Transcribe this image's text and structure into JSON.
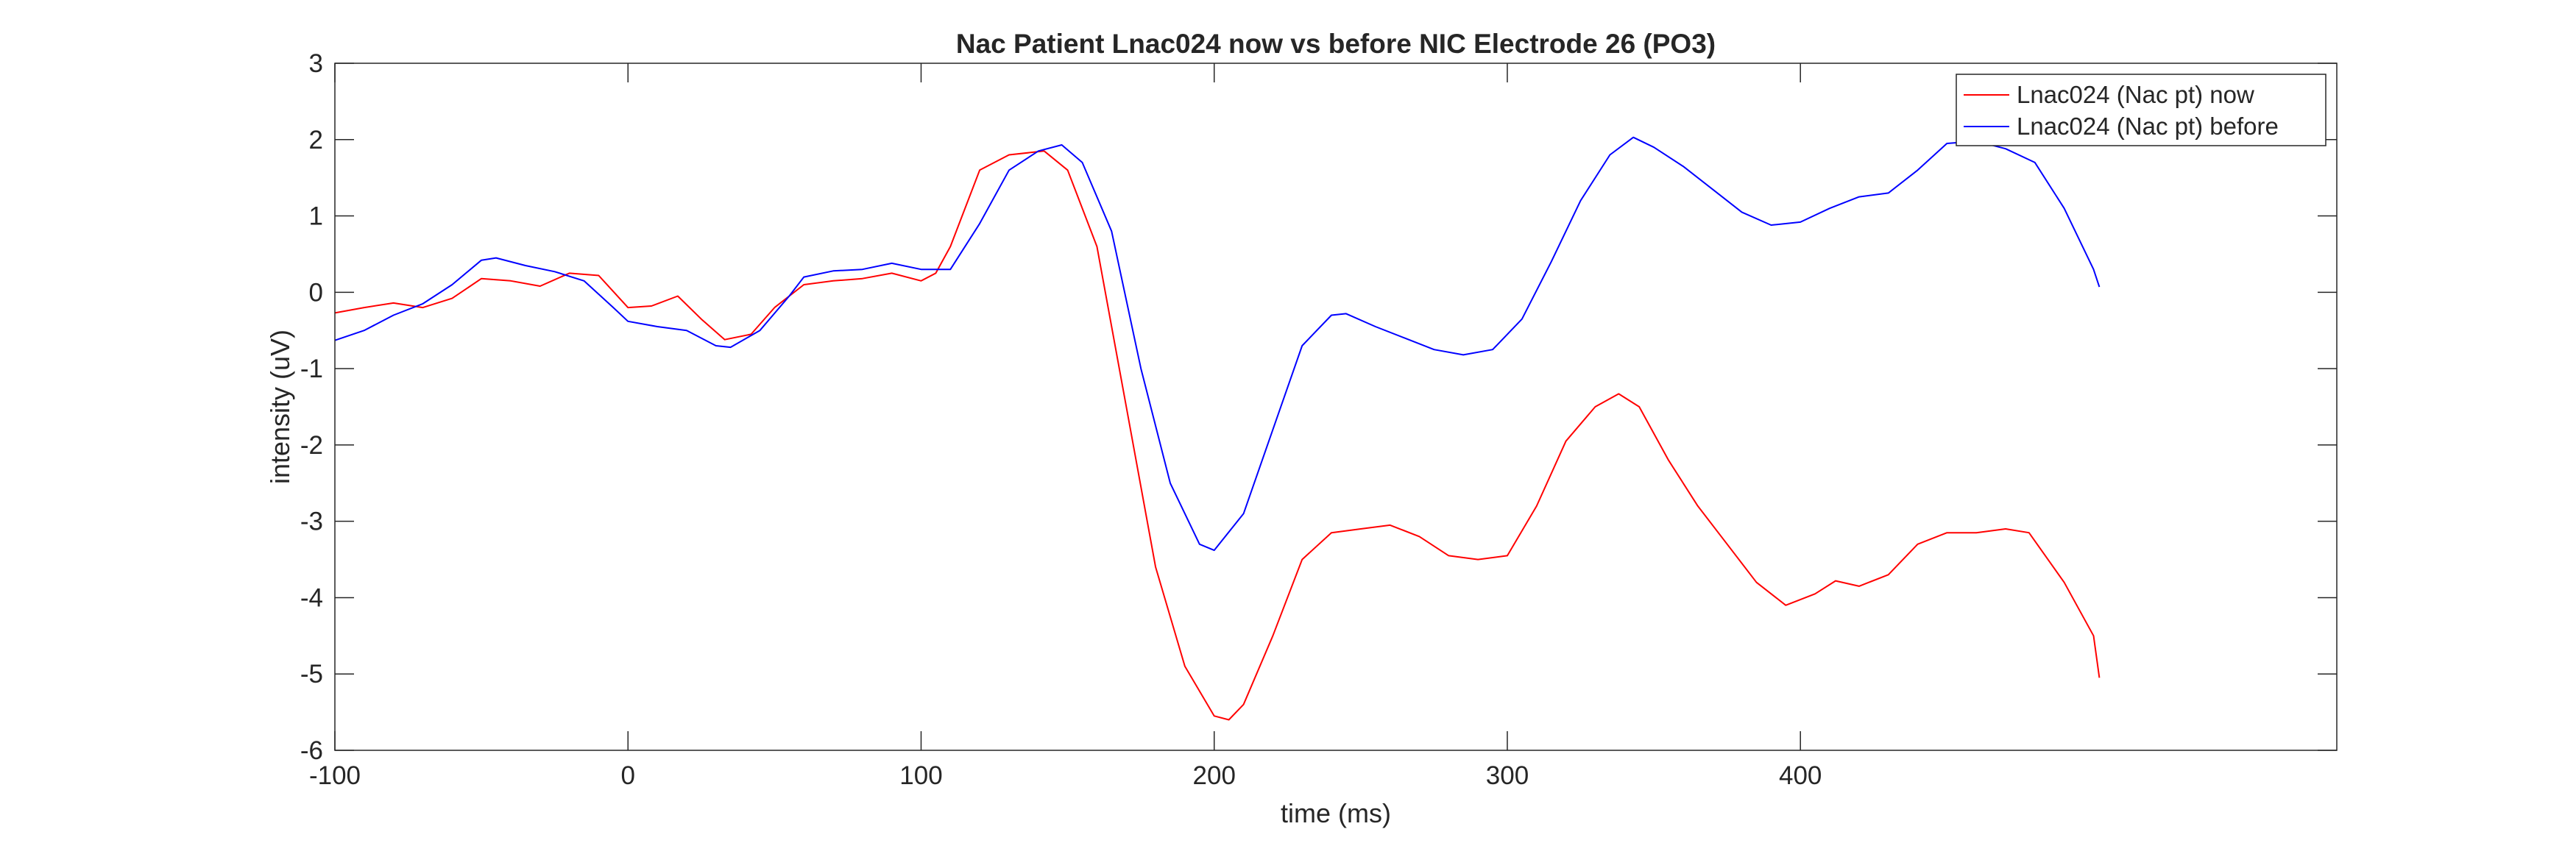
{
  "chart_data": {
    "type": "line",
    "title": "Nac Patient Lnac024 now vs before NIC Electrode 26 (PO3)",
    "xlabel": "time (ms)",
    "ylabel": "intensity (uV)",
    "xlim": [
      -100,
      583
    ],
    "ylim": [
      -6,
      3
    ],
    "xticks": [
      -100,
      0,
      100,
      200,
      300,
      400
    ],
    "xtick_labels": [
      "-100",
      "0",
      "100",
      "200",
      "300",
      "400"
    ],
    "yticks": [
      3,
      2,
      1,
      0,
      -1,
      -2,
      -3,
      -4,
      -5,
      -6
    ],
    "ytick_labels": [
      "3",
      "2",
      "1",
      "0",
      "-1",
      "-2",
      "-3",
      "-4",
      "-5",
      "-6"
    ],
    "grid": false,
    "legend_position": "top-right",
    "series": [
      {
        "name": "Lnac024 (Nac pt) now",
        "color": "#ff0000",
        "points": [
          [
            -100,
            -0.27
          ],
          [
            -90,
            -0.2
          ],
          [
            -80,
            -0.14
          ],
          [
            -70,
            -0.2
          ],
          [
            -60,
            -0.08
          ],
          [
            -50,
            0.18
          ],
          [
            -40,
            0.15
          ],
          [
            -30,
            0.08
          ],
          [
            -20,
            0.25
          ],
          [
            -10,
            0.22
          ],
          [
            0,
            -0.2
          ],
          [
            8,
            -0.18
          ],
          [
            17,
            -0.05
          ],
          [
            25,
            -0.35
          ],
          [
            33,
            -0.62
          ],
          [
            42,
            -0.55
          ],
          [
            50,
            -0.2
          ],
          [
            60,
            0.1
          ],
          [
            70,
            0.15
          ],
          [
            80,
            0.18
          ],
          [
            90,
            0.25
          ],
          [
            100,
            0.15
          ],
          [
            105,
            0.25
          ],
          [
            110,
            0.6
          ],
          [
            120,
            1.6
          ],
          [
            130,
            1.8
          ],
          [
            142,
            1.85
          ],
          [
            150,
            1.6
          ],
          [
            160,
            0.6
          ],
          [
            170,
            -1.5
          ],
          [
            180,
            -3.6
          ],
          [
            190,
            -4.9
          ],
          [
            200,
            -5.55
          ],
          [
            205,
            -5.6
          ],
          [
            210,
            -5.4
          ],
          [
            220,
            -4.5
          ],
          [
            230,
            -3.5
          ],
          [
            240,
            -3.15
          ],
          [
            250,
            -3.1
          ],
          [
            260,
            -3.05
          ],
          [
            270,
            -3.2
          ],
          [
            280,
            -3.45
          ],
          [
            290,
            -3.5
          ],
          [
            300,
            -3.45
          ],
          [
            310,
            -2.8
          ],
          [
            320,
            -1.95
          ],
          [
            330,
            -1.5
          ],
          [
            338,
            -1.33
          ],
          [
            345,
            -1.5
          ],
          [
            355,
            -2.2
          ],
          [
            365,
            -2.8
          ],
          [
            375,
            -3.3
          ],
          [
            385,
            -3.8
          ],
          [
            395,
            -4.1
          ],
          [
            405,
            -3.95
          ],
          [
            412,
            -3.78
          ],
          [
            420,
            -3.85
          ],
          [
            430,
            -3.7
          ],
          [
            440,
            -3.3
          ],
          [
            450,
            -3.15
          ],
          [
            460,
            -3.15
          ],
          [
            470,
            -3.1
          ],
          [
            478,
            -3.15
          ],
          [
            490,
            -3.8
          ],
          [
            500,
            -4.5
          ],
          [
            502,
            -5.05
          ]
        ]
      },
      {
        "name": "Lnac024 (Nac pt) before",
        "color": "#0000ff",
        "points": [
          [
            -100,
            -0.63
          ],
          [
            -90,
            -0.5
          ],
          [
            -80,
            -0.3
          ],
          [
            -70,
            -0.15
          ],
          [
            -60,
            0.1
          ],
          [
            -50,
            0.42
          ],
          [
            -45,
            0.45
          ],
          [
            -35,
            0.35
          ],
          [
            -25,
            0.27
          ],
          [
            -15,
            0.15
          ],
          [
            -5,
            -0.2
          ],
          [
            0,
            -0.38
          ],
          [
            10,
            -0.45
          ],
          [
            20,
            -0.5
          ],
          [
            30,
            -0.7
          ],
          [
            35,
            -0.72
          ],
          [
            45,
            -0.5
          ],
          [
            55,
            -0.05
          ],
          [
            60,
            0.2
          ],
          [
            70,
            0.28
          ],
          [
            80,
            0.3
          ],
          [
            90,
            0.38
          ],
          [
            100,
            0.3
          ],
          [
            110,
            0.3
          ],
          [
            120,
            0.9
          ],
          [
            130,
            1.6
          ],
          [
            140,
            1.85
          ],
          [
            148,
            1.93
          ],
          [
            155,
            1.7
          ],
          [
            165,
            0.8
          ],
          [
            175,
            -1.0
          ],
          [
            185,
            -2.5
          ],
          [
            195,
            -3.3
          ],
          [
            200,
            -3.38
          ],
          [
            210,
            -2.9
          ],
          [
            220,
            -1.8
          ],
          [
            230,
            -0.7
          ],
          [
            240,
            -0.3
          ],
          [
            245,
            -0.28
          ],
          [
            255,
            -0.45
          ],
          [
            265,
            -0.6
          ],
          [
            275,
            -0.75
          ],
          [
            285,
            -0.82
          ],
          [
            295,
            -0.75
          ],
          [
            305,
            -0.35
          ],
          [
            315,
            0.4
          ],
          [
            325,
            1.2
          ],
          [
            335,
            1.8
          ],
          [
            343,
            2.03
          ],
          [
            350,
            1.9
          ],
          [
            360,
            1.65
          ],
          [
            370,
            1.35
          ],
          [
            380,
            1.05
          ],
          [
            390,
            0.88
          ],
          [
            400,
            0.92
          ],
          [
            410,
            1.1
          ],
          [
            420,
            1.25
          ],
          [
            430,
            1.3
          ],
          [
            440,
            1.6
          ],
          [
            450,
            1.95
          ],
          [
            460,
            1.98
          ],
          [
            470,
            1.88
          ],
          [
            480,
            1.7
          ],
          [
            490,
            1.1
          ],
          [
            500,
            0.3
          ],
          [
            502,
            0.07
          ]
        ]
      }
    ]
  }
}
